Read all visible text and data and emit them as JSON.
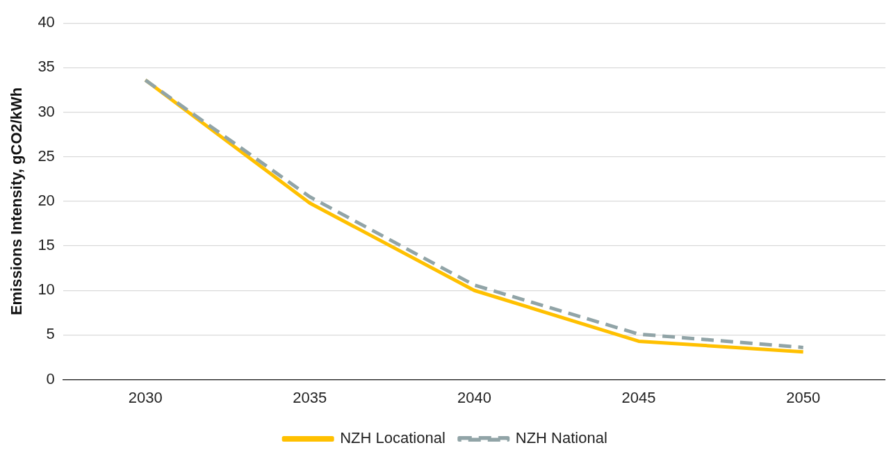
{
  "chart_data": {
    "type": "line",
    "ylabel": "Emissions Intensity, gCO2/kWh",
    "categories": [
      "2030",
      "2035",
      "2040",
      "2045",
      "2050"
    ],
    "series": [
      {
        "name": "NZH Locational",
        "color": "#ffc000",
        "line_style": "solid",
        "values": [
          33.6,
          19.8,
          10,
          4.3,
          3.1
        ]
      },
      {
        "name": "NZH National",
        "color": "#91a4a7",
        "line_style": "dashed",
        "values": [
          33.6,
          20.5,
          10.6,
          5.1,
          3.6
        ]
      }
    ],
    "ylim": [
      0,
      40
    ],
    "yticks": [
      0,
      5,
      10,
      15,
      20,
      25,
      30,
      35,
      40
    ],
    "grid": "y",
    "legend": "bottom",
    "marker": "none"
  }
}
